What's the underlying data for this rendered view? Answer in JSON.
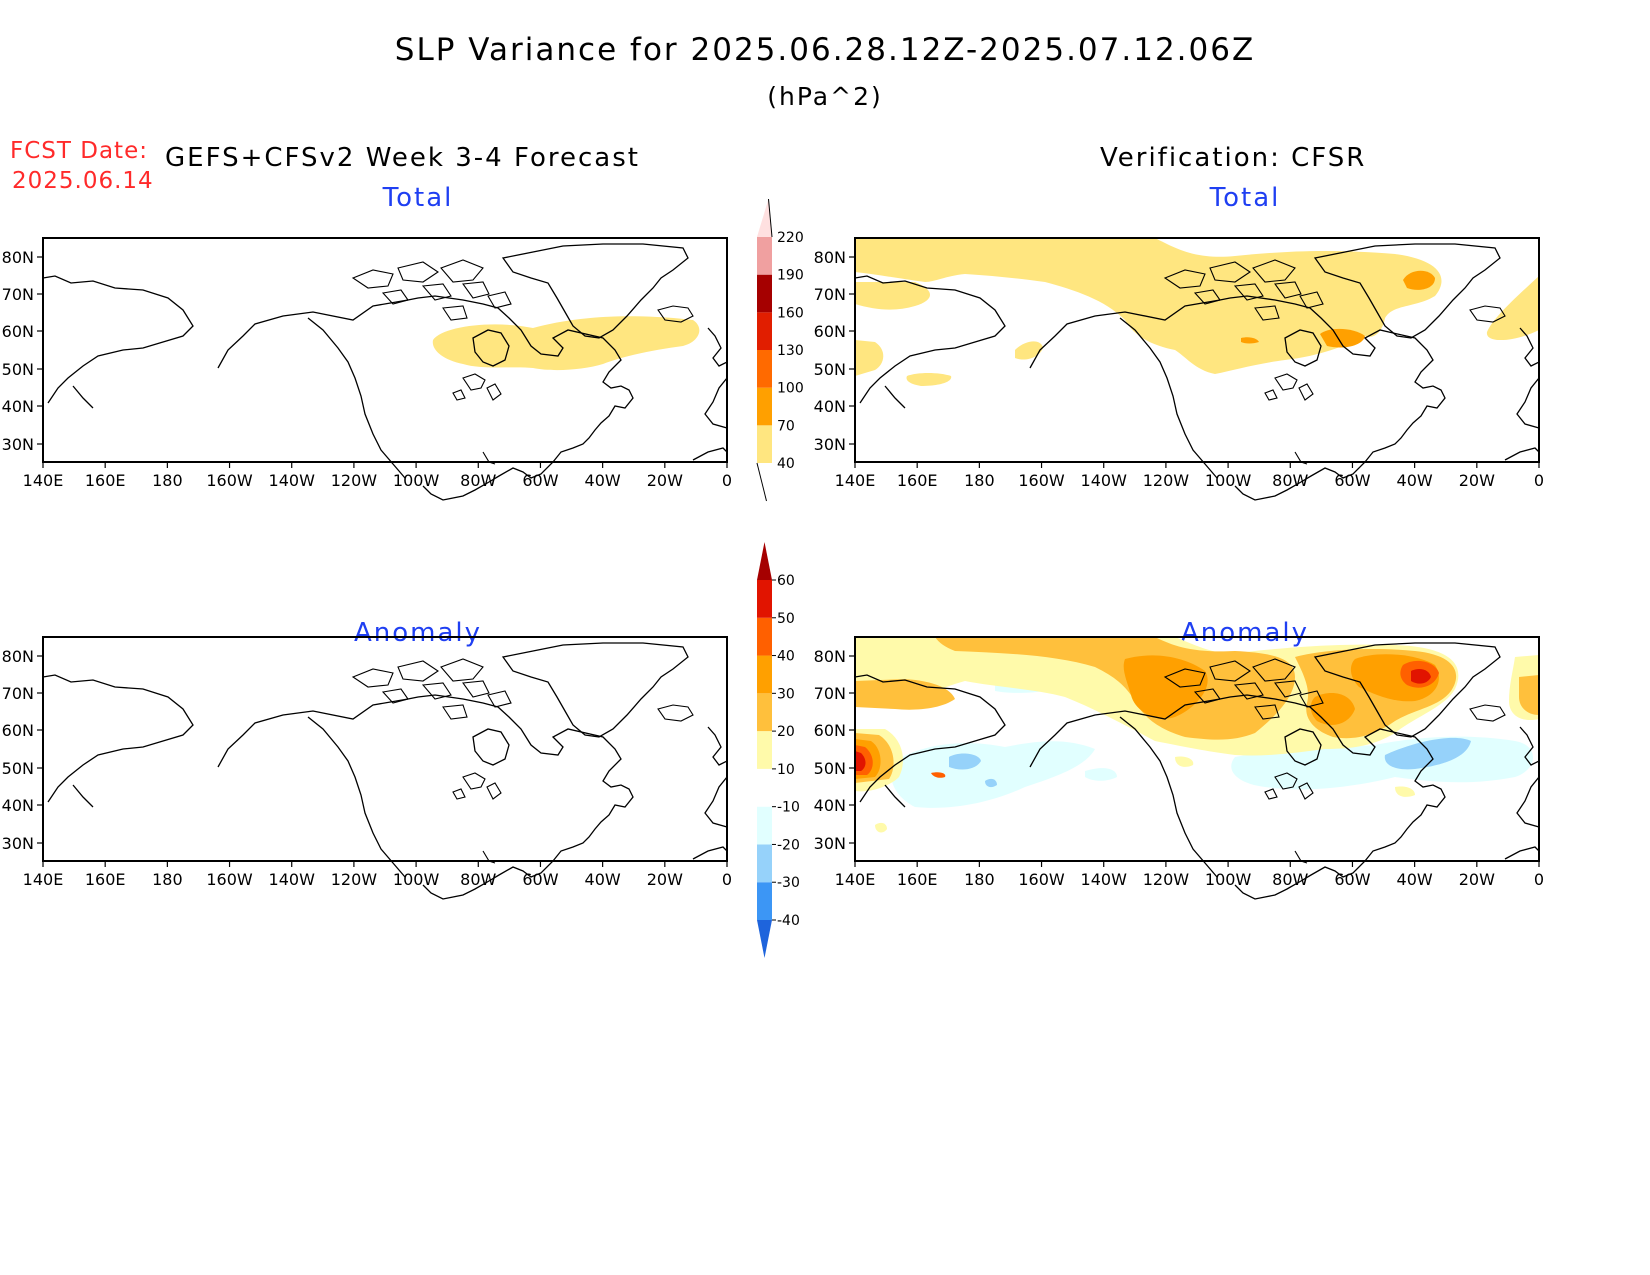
{
  "title": "SLP Variance for 2025.06.28.12Z-2025.07.12.06Z",
  "units": "(hPa^2)",
  "fcst_date_label": "FCST Date:",
  "fcst_date": "2025.06.14",
  "left_heading": "GEFS+CFSv2 Week 3-4 Forecast",
  "right_heading": "Verification: CFSR",
  "panels": [
    {
      "id": "forecast-total",
      "title": "Total"
    },
    {
      "id": "verification-total",
      "title": "Total"
    },
    {
      "id": "forecast-anomaly",
      "title": "Anomaly"
    },
    {
      "id": "verification-anomaly",
      "title": "Anomaly"
    }
  ],
  "lat_labels": [
    "80N",
    "70N",
    "60N",
    "50N",
    "40N",
    "30N"
  ],
  "lon_labels": [
    "140E",
    "160E",
    "180",
    "160W",
    "140W",
    "120W",
    "100W",
    "80W",
    "60W",
    "40W",
    "20W",
    "0"
  ],
  "total_colorbar": {
    "levels": [
      "40",
      "70",
      "100",
      "130",
      "160",
      "190",
      "220"
    ],
    "colors": [
      "#ffe680",
      "#ffa000",
      "#ff6a00",
      "#e11e00",
      "#a50000",
      "#f0a0a0",
      "#ffe0e0"
    ]
  },
  "anomaly_colorbar": {
    "levels": [
      "-40",
      "-30",
      "-20",
      "-10",
      "10",
      "20",
      "30",
      "40",
      "50",
      "60"
    ],
    "colors": [
      "#1e64dc",
      "#3c96f5",
      "#96d2fa",
      "#e1ffff",
      "#ffffff",
      "#fffaaa",
      "#ffc03c",
      "#ffa000",
      "#ff6000",
      "#e11400",
      "#a50000"
    ]
  },
  "colors": {
    "title_blue": "#1f3ff2",
    "fcst_red": "#ff2a2a"
  }
}
